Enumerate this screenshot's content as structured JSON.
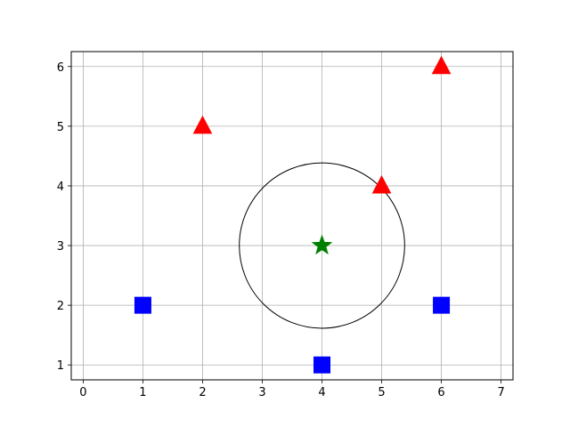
{
  "chart_data": {
    "type": "scatter",
    "title": "",
    "xlabel": "",
    "ylabel": "",
    "xlim": [
      -0.2,
      7.2
    ],
    "ylim": [
      0.75,
      6.25
    ],
    "xticks": [
      0,
      1,
      2,
      3,
      4,
      5,
      6,
      7
    ],
    "yticks": [
      1,
      2,
      3,
      4,
      5,
      6
    ],
    "grid": true,
    "legend": "none",
    "series": [
      {
        "marker": "triangle",
        "color": "#ff0000",
        "points": [
          [
            2,
            5
          ],
          [
            5,
            4
          ],
          [
            6,
            6
          ]
        ]
      },
      {
        "marker": "square",
        "color": "#0000ff",
        "points": [
          [
            1,
            2
          ],
          [
            4,
            1
          ],
          [
            6,
            2
          ]
        ]
      },
      {
        "marker": "star",
        "color": "#008000",
        "points": [
          [
            4,
            3
          ]
        ]
      }
    ],
    "shapes": [
      {
        "type": "circle",
        "center": [
          4,
          3
        ],
        "radius": 1.385,
        "color": "#000000",
        "fill": "none"
      }
    ]
  }
}
